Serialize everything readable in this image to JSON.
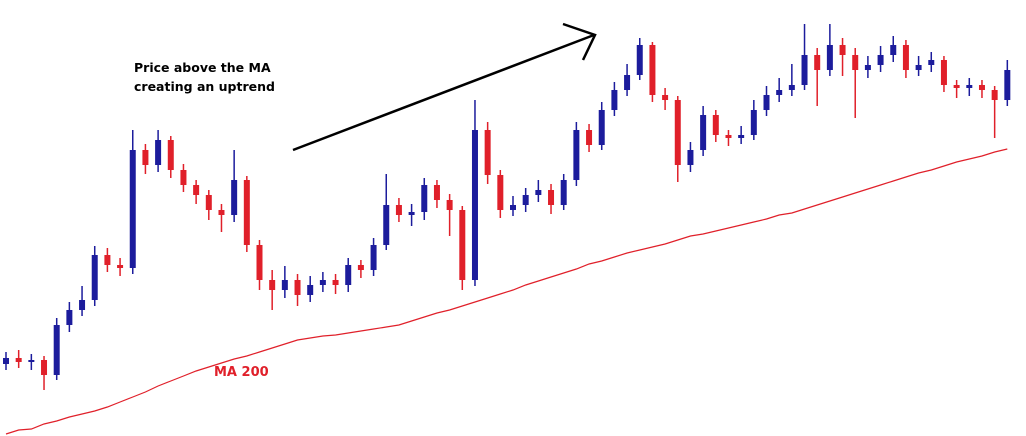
{
  "chart_data": {
    "type": "candlestick",
    "annotation": [
      "Price above the MA",
      "creating an uptrend"
    ],
    "up_color": "#1c1c9c",
    "down_color": "#e0202a",
    "ylim": [
      0,
      436
    ],
    "open": [
      72,
      78,
      74,
      76,
      61,
      111,
      126,
      136,
      181,
      171,
      168,
      286,
      271,
      296,
      266,
      251,
      241,
      226,
      221,
      256,
      191,
      156,
      146,
      156,
      141,
      151,
      156,
      151,
      171,
      166,
      191,
      231,
      221,
      224,
      251,
      236,
      226,
      156,
      306,
      261,
      226,
      231,
      241,
      246,
      231,
      256,
      306,
      291,
      326,
      346,
      361,
      391,
      341,
      336,
      271,
      286,
      321,
      301,
      298,
      301,
      326,
      341,
      346,
      351,
      381,
      366,
      391,
      381,
      366,
      371,
      381,
      391,
      366,
      371,
      376,
      351,
      348,
      351,
      346,
      336
    ],
    "high": [
      84,
      86,
      82,
      80,
      118,
      134,
      150,
      190,
      188,
      178,
      306,
      292,
      306,
      300,
      272,
      256,
      246,
      232,
      286,
      260,
      196,
      166,
      170,
      162,
      160,
      164,
      162,
      178,
      176,
      198,
      262,
      238,
      232,
      258,
      256,
      242,
      230,
      336,
      314,
      266,
      240,
      248,
      256,
      252,
      262,
      314,
      312,
      334,
      354,
      372,
      398,
      394,
      348,
      340,
      294,
      330,
      326,
      306,
      310,
      336,
      350,
      358,
      372,
      412,
      388,
      412,
      398,
      388,
      380,
      390,
      400,
      396,
      380,
      384,
      380,
      356,
      358,
      356,
      350,
      376
    ],
    "low": [
      66,
      68,
      66,
      46,
      56,
      104,
      120,
      130,
      164,
      160,
      162,
      262,
      264,
      258,
      244,
      232,
      216,
      204,
      214,
      184,
      146,
      126,
      138,
      130,
      134,
      144,
      142,
      144,
      158,
      160,
      186,
      214,
      210,
      216,
      228,
      200,
      146,
      150,
      252,
      218,
      220,
      224,
      234,
      222,
      226,
      250,
      284,
      286,
      320,
      340,
      356,
      334,
      326,
      254,
      264,
      280,
      294,
      290,
      292,
      296,
      320,
      334,
      340,
      346,
      330,
      360,
      360,
      318,
      358,
      364,
      374,
      358,
      360,
      364,
      344,
      338,
      340,
      338,
      298,
      330
    ],
    "close": [
      78,
      74,
      76,
      61,
      111,
      126,
      136,
      181,
      171,
      168,
      286,
      271,
      296,
      266,
      251,
      241,
      226,
      221,
      256,
      191,
      156,
      146,
      156,
      141,
      151,
      156,
      151,
      171,
      166,
      191,
      231,
      221,
      224,
      251,
      236,
      226,
      156,
      306,
      261,
      226,
      231,
      241,
      246,
      231,
      256,
      306,
      291,
      326,
      346,
      361,
      391,
      341,
      336,
      271,
      286,
      321,
      301,
      298,
      301,
      326,
      341,
      346,
      351,
      381,
      366,
      391,
      381,
      366,
      371,
      381,
      391,
      366,
      371,
      376,
      351,
      348,
      351,
      346,
      336,
      366
    ],
    "ma": {
      "name": "MA 200",
      "color": "#e0202a",
      "values": [
        2,
        6,
        7,
        12,
        15,
        19,
        22,
        25,
        29,
        34,
        39,
        44,
        50,
        55,
        60,
        65,
        69,
        73,
        77,
        80,
        84,
        88,
        92,
        96,
        98,
        100,
        101,
        103,
        105,
        107,
        109,
        111,
        115,
        119,
        123,
        126,
        130,
        134,
        138,
        142,
        146,
        151,
        155,
        159,
        163,
        167,
        172,
        175,
        179,
        183,
        186,
        189,
        192,
        196,
        200,
        202,
        205,
        208,
        211,
        214,
        217,
        221,
        223,
        227,
        231,
        235,
        239,
        243,
        247,
        251,
        255,
        259,
        263,
        266,
        270,
        274,
        277,
        280,
        284,
        287
      ]
    }
  }
}
